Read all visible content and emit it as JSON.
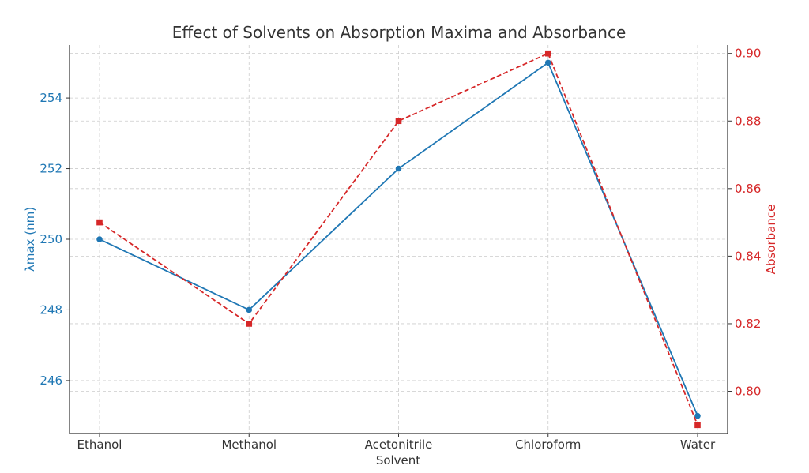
{
  "chart_data": {
    "type": "line",
    "title": "Effect of Solvents on Absorption Maxima and Absorbance",
    "xlabel": "Solvent",
    "categories": [
      "Ethanol",
      "Methanol",
      "Acetonitrile",
      "Chloroform",
      "Water"
    ],
    "grid": true,
    "y_left": {
      "label": "λmax (nm)",
      "range": [
        244.5,
        255.5
      ],
      "ticks": [
        246,
        248,
        250,
        252,
        254
      ],
      "tick_labels": [
        "246",
        "248",
        "250",
        "252",
        "254"
      ],
      "color": "#1f77b4"
    },
    "y_right": {
      "label": "Absorbance",
      "range": [
        0.7875,
        0.9025
      ],
      "ticks": [
        0.8,
        0.82,
        0.84,
        0.86,
        0.88,
        0.9
      ],
      "tick_labels": [
        "0.80",
        "0.82",
        "0.84",
        "0.86",
        "0.88",
        "0.90"
      ],
      "color": "#d62728"
    },
    "series": [
      {
        "axis": "left",
        "values": [
          250,
          248,
          252,
          255,
          245
        ],
        "color": "#1f77b4",
        "style": "solid",
        "marker": "circle"
      },
      {
        "axis": "right",
        "values": [
          0.85,
          0.82,
          0.88,
          0.9,
          0.79
        ],
        "color": "#d62728",
        "style": "dashed",
        "marker": "square"
      }
    ]
  }
}
